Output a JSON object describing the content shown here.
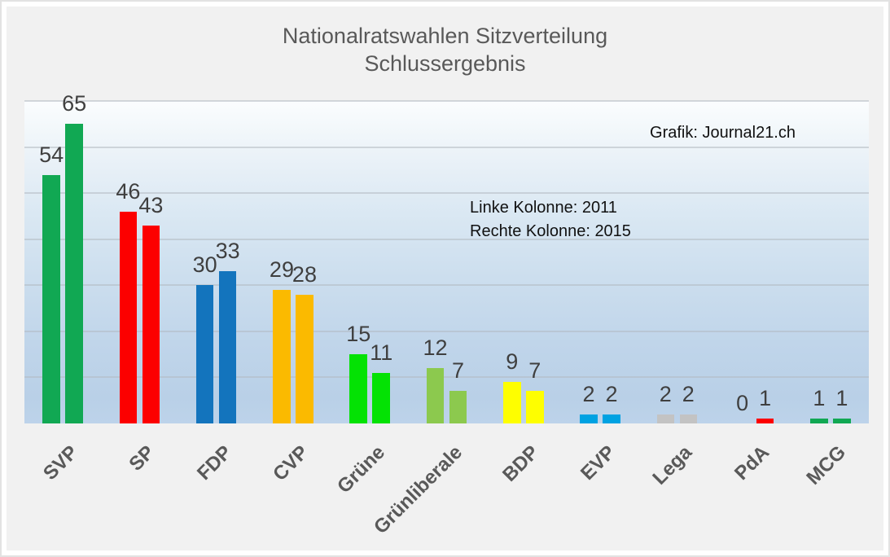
{
  "title": {
    "line1": "Nationalratswahlen Sitzverteilung",
    "line2": "Schlussergebnis"
  },
  "annotations": {
    "credit": "Grafik: Journal21.ch",
    "legend_left": "Linke Kolonne: 2011",
    "legend_right": "Rechte Kolonne: 2015"
  },
  "chart_data": {
    "type": "bar",
    "title": "Nationalratswahlen Sitzverteilung Schlussergebnis",
    "categories": [
      "SVP",
      "SP",
      "FDP",
      "CVP",
      "Grüne",
      "Grünliberale",
      "BDP",
      "EVP",
      "Lega",
      "PdA",
      "MCG"
    ],
    "series": [
      {
        "name": "2011",
        "values": [
          54,
          46,
          30,
          29,
          15,
          12,
          9,
          2,
          2,
          0,
          1
        ]
      },
      {
        "name": "2015",
        "values": [
          65,
          43,
          33,
          28,
          11,
          7,
          7,
          2,
          2,
          1,
          1
        ]
      }
    ],
    "bar_colors": [
      "#11a853",
      "#fc0000",
      "#1374bd",
      "#fbba00",
      "#04e204",
      "#8cc94e",
      "#fefe00",
      "#00a2e2",
      "#c3c3c3",
      "#fc0000",
      "#11a853"
    ],
    "xlabel": "",
    "ylabel": "",
    "ylim": [
      0,
      70
    ],
    "gridline_step": 10,
    "grid": true,
    "legend_position": "none",
    "value_labels": true
  },
  "colors": {
    "canvas_background": "#f1f1f1",
    "frame_border": "#e2e2e2",
    "title_text": "#595959",
    "axis_label_text": "#595959",
    "value_label_text": "#3f3f3f",
    "annotation_text": "#111111",
    "gridline": "#b2bac1",
    "plot_gradient_top": "#fbfdfe",
    "plot_gradient_bottom": "#bdd3ea"
  }
}
